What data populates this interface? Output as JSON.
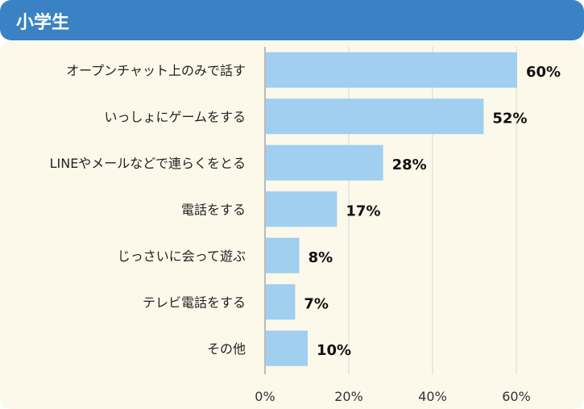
{
  "header": {
    "title": "小学生"
  },
  "chart_data": {
    "type": "bar",
    "orientation": "horizontal",
    "title": "小学生",
    "categories": [
      "オープンチャット上のみで話す",
      "いっしょにゲームをする",
      "LINEやメールなどで連らくをとる",
      "電話をする",
      "じっさいに会って遊ぶ",
      "テレビ電話をする",
      "その他"
    ],
    "values": [
      60,
      52,
      28,
      17,
      8,
      7,
      10
    ],
    "value_labels": [
      "60%",
      "52%",
      "28%",
      "17%",
      "8%",
      "7%",
      "10%"
    ],
    "xticks": [
      "0%",
      "20%",
      "40%",
      "60%"
    ],
    "xtick_values": [
      0,
      20,
      40,
      60
    ],
    "xlim": [
      0,
      60
    ],
    "grid": true,
    "colors": {
      "bar": "#a0cff0",
      "header": "#3a82c4",
      "background": "#fcf9ea",
      "grid": "#d9d9d9"
    }
  }
}
